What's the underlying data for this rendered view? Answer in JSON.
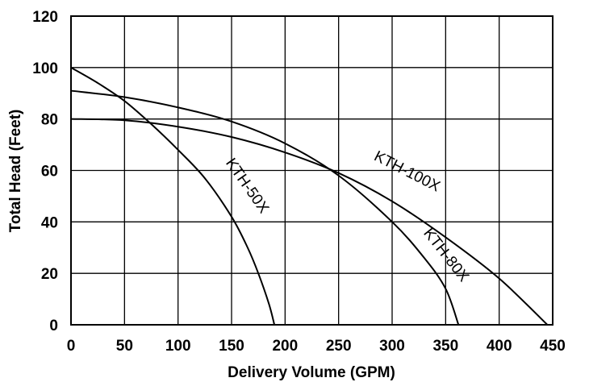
{
  "chart_data": {
    "type": "line",
    "title": "",
    "xlabel": "Delivery Volume (GPM)",
    "ylabel": "Total Head (Feet)",
    "xlim": [
      0,
      450
    ],
    "ylim": [
      0,
      120
    ],
    "xticks": [
      0,
      50,
      100,
      150,
      200,
      250,
      300,
      350,
      400,
      450
    ],
    "yticks": [
      0,
      20,
      40,
      60,
      80,
      100,
      120
    ],
    "grid": true,
    "legend": "none",
    "series": [
      {
        "name": "KTH-50X",
        "x": [
          0,
          25,
          50,
          75,
          100,
          125,
          150,
          165,
          175,
          185,
          190
        ],
        "y": [
          100,
          94,
          87,
          78,
          68,
          57,
          42,
          30,
          20,
          8,
          0
        ]
      },
      {
        "name": "KTH-80X",
        "x": [
          0,
          50,
          100,
          150,
          200,
          250,
          300,
          330,
          350,
          362
        ],
        "y": [
          91,
          88.5,
          84.5,
          79,
          70.5,
          58,
          40,
          26,
          14,
          0
        ]
      },
      {
        "name": "KTH-100X",
        "x": [
          0,
          50,
          100,
          150,
          200,
          250,
          300,
          350,
          400,
          445
        ],
        "y": [
          80,
          79.5,
          77,
          73,
          67,
          59,
          48,
          34,
          18,
          0
        ]
      }
    ]
  }
}
